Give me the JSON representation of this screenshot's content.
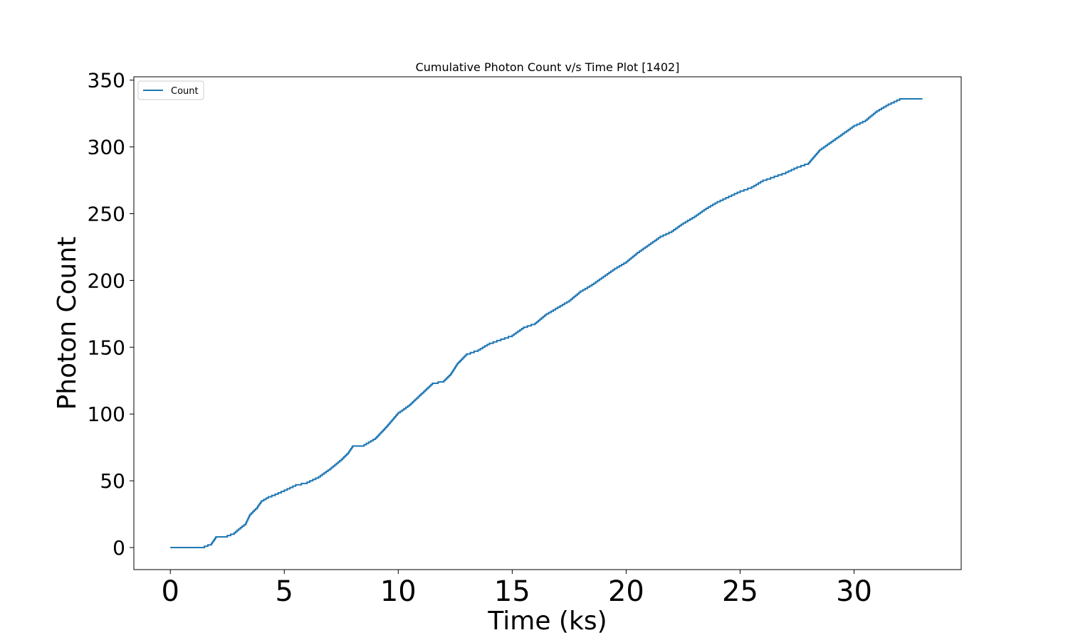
{
  "chart_data": {
    "type": "line",
    "title": "Cumulative Photon Count v/s Time Plot [1402]",
    "xlabel": "Time (ks)",
    "ylabel": "Photon Count",
    "xlim": [
      -1.6,
      34.7
    ],
    "ylim": [
      -16.5,
      352.5
    ],
    "x_ticks": [
      0,
      5,
      10,
      15,
      20,
      25,
      30
    ],
    "y_ticks": [
      0,
      50,
      100,
      150,
      200,
      250,
      300,
      350
    ],
    "grid": false,
    "legend_position": "upper left",
    "series": [
      {
        "name": "Count",
        "color": "#1f77b4",
        "x": [
          0,
          0.5,
          1.0,
          1.5,
          1.8,
          2.0,
          2.2,
          2.5,
          2.8,
          3.0,
          3.3,
          3.5,
          3.8,
          4.0,
          4.3,
          4.6,
          5.0,
          5.5,
          6.0,
          6.5,
          7.0,
          7.5,
          7.8,
          8.0,
          8.5,
          9.0,
          9.5,
          10.0,
          10.5,
          11.0,
          11.5,
          12.0,
          12.3,
          12.6,
          13.0,
          13.5,
          14.0,
          14.5,
          15.0,
          15.5,
          16.0,
          16.5,
          17.0,
          17.5,
          18.0,
          18.5,
          19.0,
          19.5,
          20.0,
          20.5,
          21.0,
          21.5,
          22.0,
          22.5,
          23.0,
          23.5,
          24.0,
          24.5,
          25.0,
          25.5,
          26.0,
          26.5,
          27.0,
          27.5,
          28.0,
          28.5,
          29.0,
          29.5,
          30.0,
          30.5,
          31.0,
          31.5,
          32.0,
          32.5,
          33.0
        ],
        "y": [
          0,
          0,
          0,
          1,
          3,
          8,
          8,
          9,
          11,
          14,
          18,
          25,
          30,
          35,
          38,
          40,
          43,
          47,
          49,
          53,
          59,
          66,
          71,
          76,
          77,
          82,
          91,
          101,
          107,
          115,
          123,
          125,
          130,
          138,
          145,
          148,
          153,
          156,
          159,
          165,
          168,
          175,
          180,
          185,
          192,
          197,
          203,
          209,
          214,
          221,
          227,
          233,
          237,
          243,
          248,
          254,
          259,
          263,
          267,
          270,
          275,
          278,
          281,
          285,
          288,
          298,
          304,
          310,
          316,
          320,
          327,
          332,
          336,
          336,
          336
        ]
      }
    ]
  }
}
